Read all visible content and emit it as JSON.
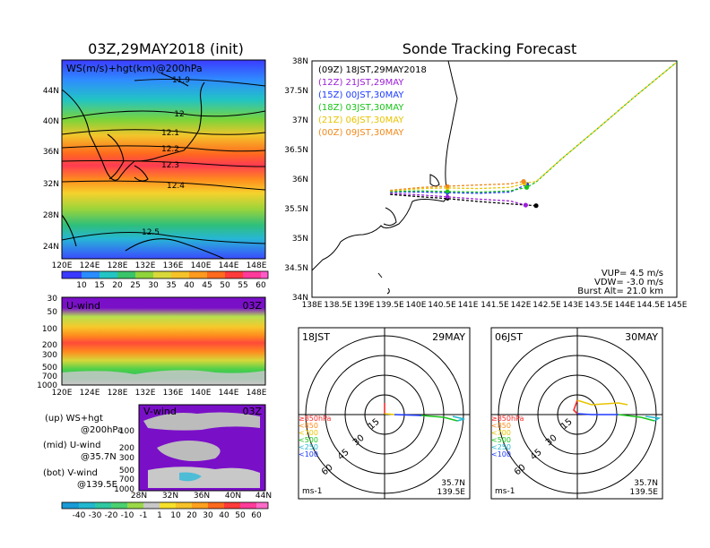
{
  "colors": {
    "sev_00": "#000000",
    "sev_12": "#9a1ed6",
    "sev_15": "#1e3cff",
    "sev_18": "#18c418",
    "sev_21": "#e8c400",
    "sev_24": "#f08a1c"
  },
  "left": {
    "map_title": "03Z,29MAY2018 (init)",
    "map_label": "WS(m/s)+hgt(km)@200hPa",
    "lat_ticks": [
      "44N",
      "40N",
      "36N",
      "32N",
      "28N",
      "24N"
    ],
    "lon_ticks": [
      "120E",
      "124E",
      "128E",
      "132E",
      "136E",
      "140E",
      "144E",
      "148E"
    ],
    "contours": [
      "11.9",
      "12",
      "12.1",
      "12.2",
      "12.3",
      "12.4",
      "12.5"
    ],
    "colorbar_ticks": [
      "10",
      "15",
      "20",
      "25",
      "30",
      "35",
      "40",
      "45",
      "50",
      "55",
      "60"
    ],
    "u_label": "U-wind",
    "u_time": "03Z",
    "p_ticks": [
      "30",
      "50",
      "100",
      "200",
      "300",
      "500",
      "700",
      "1000"
    ],
    "u_lon_ticks": [
      "120E",
      "124E",
      "128E",
      "132E",
      "136E",
      "140E",
      "144E",
      "148E"
    ],
    "v_label": "V-wind",
    "v_time": "03Z",
    "v_p_ticks": [
      "100",
      "200",
      "300",
      "500",
      "700",
      "1000"
    ],
    "v_lat_ticks": [
      "28N",
      "32N",
      "36N",
      "40N",
      "44N"
    ],
    "legend": [
      {
        "a": "(up) WS+hgt",
        "b": "@200hPa"
      },
      {
        "a": "(mid) U-wind",
        "b": "@35.7N"
      },
      {
        "a": "(bot) V-wind",
        "b": "@139.5E"
      }
    ],
    "bottom_colorbar_ticks": [
      "-40",
      "-30",
      "-20",
      "-10",
      "-1",
      "1",
      "10",
      "20",
      "30",
      "40",
      "50",
      "60"
    ]
  },
  "chart_data": [
    {
      "type": "line",
      "title": "Sonde Tracking Forecast",
      "x_ticks": [
        "138E",
        "138.5E",
        "139E",
        "139.5E",
        "140E",
        "140.5E",
        "141E",
        "141.5E",
        "142E",
        "142.5E",
        "143E",
        "143.5E",
        "144E",
        "144.5E",
        "145E"
      ],
      "y_ticks": [
        "38N",
        "37.5N",
        "37N",
        "36.5N",
        "36N",
        "35.5N",
        "35N",
        "34.5N",
        "34N"
      ],
      "xlim": [
        138,
        145
      ],
      "ylim": [
        34,
        38
      ],
      "legend_position": "top-left",
      "series": [
        {
          "name": "(09Z) 18JST,29MAY2018",
          "color_key": "sev_00",
          "lon": [
            139.5,
            140.1,
            140.6,
            141.2,
            141.8,
            142.3
          ],
          "lat": [
            35.74,
            35.7,
            35.67,
            35.62,
            35.58,
            35.55
          ]
        },
        {
          "name": "(12Z) 21JST,29MAY",
          "color_key": "sev_12",
          "lon": [
            139.5,
            140.1,
            140.6,
            141.2,
            141.8,
            142.1
          ],
          "lat": [
            35.76,
            35.73,
            35.7,
            35.66,
            35.63,
            35.56
          ]
        },
        {
          "name": "(15Z) 00JST,30MAY",
          "color_key": "sev_15",
          "lon": [
            139.5,
            140.1,
            140.6,
            141.2,
            141.8,
            142.12
          ],
          "lat": [
            35.78,
            35.78,
            35.77,
            35.76,
            35.78,
            35.91
          ]
        },
        {
          "name": "(18Z) 03JST,30MAY",
          "color_key": "sev_18",
          "lon": [
            139.5,
            140.1,
            140.6,
            141.2,
            141.8,
            142.12,
            142.3,
            142.8,
            143.5,
            144.2,
            145.0
          ],
          "lat": [
            35.79,
            35.8,
            35.79,
            35.78,
            35.8,
            35.86,
            35.95,
            36.35,
            36.87,
            37.4,
            37.98
          ]
        },
        {
          "name": "(21Z) 06JST,30MAY",
          "color_key": "sev_21",
          "lon": [
            139.5,
            140.1,
            140.6,
            141.2,
            141.8,
            142.08,
            142.3,
            142.8,
            143.5,
            144.2,
            145.0
          ],
          "lat": [
            35.8,
            35.84,
            35.85,
            35.84,
            35.86,
            35.93,
            35.96,
            36.35,
            36.87,
            37.4,
            37.98
          ]
        },
        {
          "name": "(00Z) 09JST,30MAY",
          "color_key": "sev_24",
          "lon": [
            139.5,
            140.1,
            140.6,
            141.2,
            141.8,
            142.06
          ],
          "lat": [
            35.81,
            35.86,
            35.88,
            35.9,
            35.92,
            35.96
          ]
        }
      ],
      "annotations": [
        "VUP= 4.5 m/s",
        "VDW= -3.0 m/s",
        "Burst Alt= 21.0 km"
      ]
    },
    {
      "type": "scatter",
      "time": "18JST",
      "date": "29MAY",
      "ring_labels": [
        "15",
        "30",
        "45",
        "60"
      ],
      "unit": "ms-1",
      "location": [
        "35.7N",
        "139.5E"
      ],
      "levels": [
        "≥850hPa",
        "<850",
        "<700",
        "<500",
        "<250",
        "<100"
      ]
    },
    {
      "type": "scatter",
      "time": "06JST",
      "date": "30MAY",
      "ring_labels": [
        "15",
        "30",
        "45",
        "60"
      ],
      "unit": "ms-1",
      "location": [
        "35.7N",
        "139.5E"
      ],
      "levels": [
        "≥850hPa",
        "<850",
        "<700",
        "<500",
        "<250",
        "<100"
      ]
    }
  ]
}
